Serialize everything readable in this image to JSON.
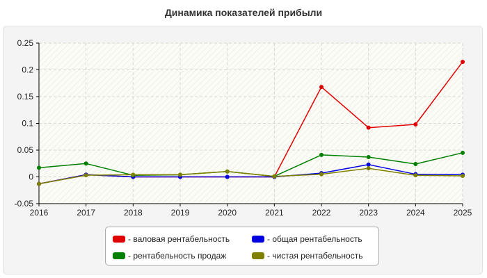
{
  "chart_data": {
    "type": "line",
    "title": "Динамика показателей прибыли",
    "xlabel": "",
    "ylabel": "",
    "x": [
      "2016",
      "2017",
      "2018",
      "2019",
      "2020",
      "2021",
      "2022",
      "2023",
      "2024",
      "2025"
    ],
    "ylim": [
      -0.05,
      0.25
    ],
    "yticks": [
      "-0.05",
      "0",
      "0.05",
      "0.1",
      "0.15",
      "0.2",
      "0.25"
    ],
    "grid": true,
    "legend_position": "bottom",
    "series": [
      {
        "name": "- валовая рентабельность",
        "color": "#e00000",
        "values": [
          -0.013,
          0.004,
          0.0,
          0.0,
          0.0,
          0.0,
          0.168,
          0.092,
          0.098,
          0.215
        ]
      },
      {
        "name": "- общая рентабельность",
        "color": "#0000e0",
        "values": [
          -0.013,
          0.004,
          0.0,
          0.0,
          0.0,
          0.0,
          0.007,
          0.023,
          0.005,
          0.004
        ]
      },
      {
        "name": "- рентабельность продаж",
        "color": "#008000",
        "values": [
          0.017,
          0.025,
          0.003,
          0.004,
          0.01,
          0.001,
          0.041,
          0.037,
          0.024,
          0.045
        ]
      },
      {
        "name": "- чистая рентабельность",
        "color": "#808000",
        "values": [
          -0.013,
          0.003,
          0.004,
          0.004,
          0.01,
          0.001,
          0.005,
          0.016,
          0.003,
          0.002
        ]
      }
    ]
  }
}
